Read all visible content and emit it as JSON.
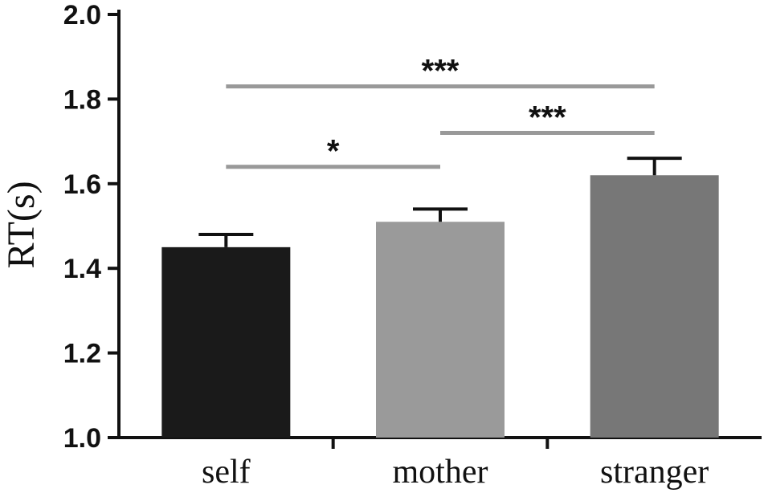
{
  "chart_data": {
    "type": "bar",
    "categories": [
      "self",
      "mother",
      "stranger"
    ],
    "values": [
      1.45,
      1.51,
      1.62
    ],
    "errors": [
      0.03,
      0.03,
      0.04
    ],
    "colors": [
      "#1a1a1a",
      "#9a9a9a",
      "#777777"
    ],
    "xlabel": "",
    "ylabel": "RT(s)",
    "ylim": [
      1.0,
      2.0
    ],
    "yticks": [
      {
        "value": 1.0,
        "label": "1.0"
      },
      {
        "value": 1.2,
        "label": "1.2"
      },
      {
        "value": 1.4,
        "label": "1.4"
      },
      {
        "value": 1.6,
        "label": "1.6"
      },
      {
        "value": 1.8,
        "label": "1.8"
      },
      {
        "value": 2.0,
        "label": "2.0"
      }
    ],
    "significance": [
      {
        "from": "self",
        "to": "mother",
        "y": 1.64,
        "label": "*"
      },
      {
        "from": "mother",
        "to": "stranger",
        "y": 1.72,
        "label": "***"
      },
      {
        "from": "self",
        "to": "stranger",
        "y": 1.83,
        "label": "***"
      }
    ],
    "sig_line_color": "#999999",
    "grid": false
  }
}
